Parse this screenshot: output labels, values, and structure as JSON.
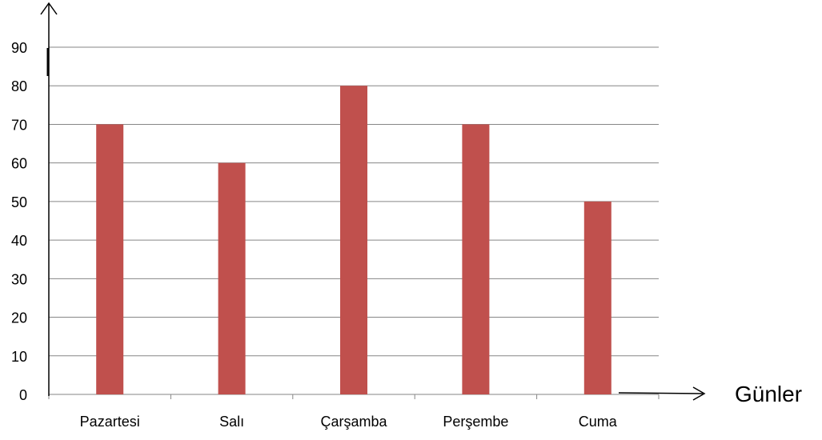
{
  "chart_data": {
    "type": "bar",
    "categories": [
      "Pazartesi",
      "Salı",
      "Çarşamba",
      "Perşembe",
      "Cuma"
    ],
    "values": [
      70,
      60,
      80,
      70,
      50
    ],
    "ylim": [
      0,
      90
    ],
    "yticks": [
      0,
      10,
      20,
      30,
      40,
      50,
      60,
      70,
      80,
      90
    ],
    "xlabel": "Günler",
    "ylabel": "",
    "title": "",
    "grid": true,
    "legend": "none",
    "bar_color": "#c0504d",
    "grid_color": "#868686"
  }
}
